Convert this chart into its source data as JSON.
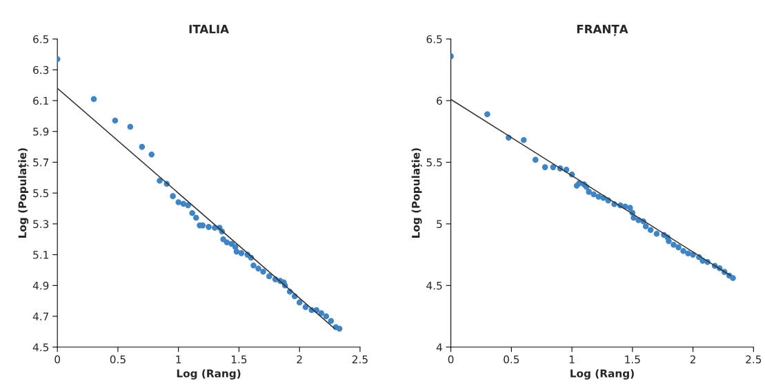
{
  "chart_data": [
    {
      "type": "scatter",
      "title": "ITALIA",
      "xlabel": "Log (Rang)",
      "ylabel": "Log (Populație)",
      "xlim": [
        0,
        2.5
      ],
      "xticks": [
        0,
        0.5,
        1,
        1.5,
        2,
        2.5
      ],
      "ylim": [
        4.5,
        6.5
      ],
      "yticks": [
        4.5,
        4.7,
        4.9,
        5.1,
        5.3,
        5.5,
        5.7,
        5.9,
        6.1,
        6.3,
        6.5
      ],
      "grid": false,
      "legend": false,
      "series": [
        {
          "marker": "circle",
          "color": "#3d85c6",
          "x": [
            0,
            0.301,
            0.477,
            0.602,
            0.699,
            0.778,
            0.845,
            0.903,
            0.954,
            1.0,
            1.041,
            1.079,
            1.114,
            1.146,
            1.176,
            1.2,
            1.25,
            1.3,
            1.34,
            1.36,
            1.37,
            1.4,
            1.44,
            1.47,
            1.48,
            1.52,
            1.57,
            1.6,
            1.62,
            1.66,
            1.7,
            1.75,
            1.8,
            1.84,
            1.87,
            1.88,
            1.92,
            1.96,
            2.0,
            2.05,
            2.1,
            2.14,
            2.18,
            2.22,
            2.26,
            2.3,
            2.33
          ],
          "values": [
            6.37,
            6.11,
            5.97,
            5.93,
            5.8,
            5.75,
            5.58,
            5.56,
            5.48,
            5.44,
            5.43,
            5.42,
            5.37,
            5.34,
            5.29,
            5.29,
            5.28,
            5.275,
            5.275,
            5.25,
            5.2,
            5.18,
            5.17,
            5.15,
            5.12,
            5.11,
            5.1,
            5.08,
            5.03,
            5.01,
            4.99,
            4.96,
            4.94,
            4.93,
            4.92,
            4.9,
            4.86,
            4.83,
            4.79,
            4.76,
            4.74,
            4.74,
            4.72,
            4.7,
            4.67,
            4.63,
            4.62
          ]
        },
        {
          "type": "line",
          "color": "#333333",
          "x": [
            0,
            2.29
          ],
          "values": [
            6.18,
            4.62
          ]
        }
      ]
    },
    {
      "type": "scatter",
      "title": "FRANȚA",
      "xlabel": "Log (Rang)",
      "ylabel": "Log (Populație)",
      "xlim": [
        0,
        2.5
      ],
      "xticks": [
        0,
        0.5,
        1,
        1.5,
        2,
        2.5
      ],
      "ylim": [
        4,
        6.5
      ],
      "yticks": [
        4,
        4.5,
        5,
        5.5,
        6,
        6.5
      ],
      "grid": false,
      "legend": false,
      "series": [
        {
          "marker": "circle",
          "color": "#3d85c6",
          "x": [
            0,
            0.301,
            0.477,
            0.602,
            0.699,
            0.778,
            0.845,
            0.903,
            0.954,
            1.0,
            1.04,
            1.06,
            1.1,
            1.12,
            1.14,
            1.18,
            1.22,
            1.26,
            1.3,
            1.35,
            1.4,
            1.44,
            1.48,
            1.5,
            1.51,
            1.55,
            1.59,
            1.61,
            1.65,
            1.7,
            1.76,
            1.79,
            1.8,
            1.84,
            1.88,
            1.92,
            1.96,
            2.0,
            2.05,
            2.08,
            2.12,
            2.18,
            2.22,
            2.26,
            2.3,
            2.33
          ],
          "values": [
            6.36,
            5.89,
            5.7,
            5.68,
            5.52,
            5.46,
            5.46,
            5.45,
            5.44,
            5.4,
            5.31,
            5.33,
            5.32,
            5.3,
            5.26,
            5.24,
            5.22,
            5.21,
            5.19,
            5.16,
            5.15,
            5.14,
            5.13,
            5.09,
            5.05,
            5.03,
            5.02,
            4.98,
            4.95,
            4.92,
            4.91,
            4.89,
            4.86,
            4.83,
            4.81,
            4.78,
            4.76,
            4.75,
            4.73,
            4.7,
            4.69,
            4.66,
            4.64,
            4.61,
            4.58,
            4.56
          ]
        },
        {
          "type": "line",
          "color": "#333333",
          "x": [
            0,
            2.31
          ],
          "values": [
            6.01,
            4.58
          ]
        }
      ]
    }
  ]
}
